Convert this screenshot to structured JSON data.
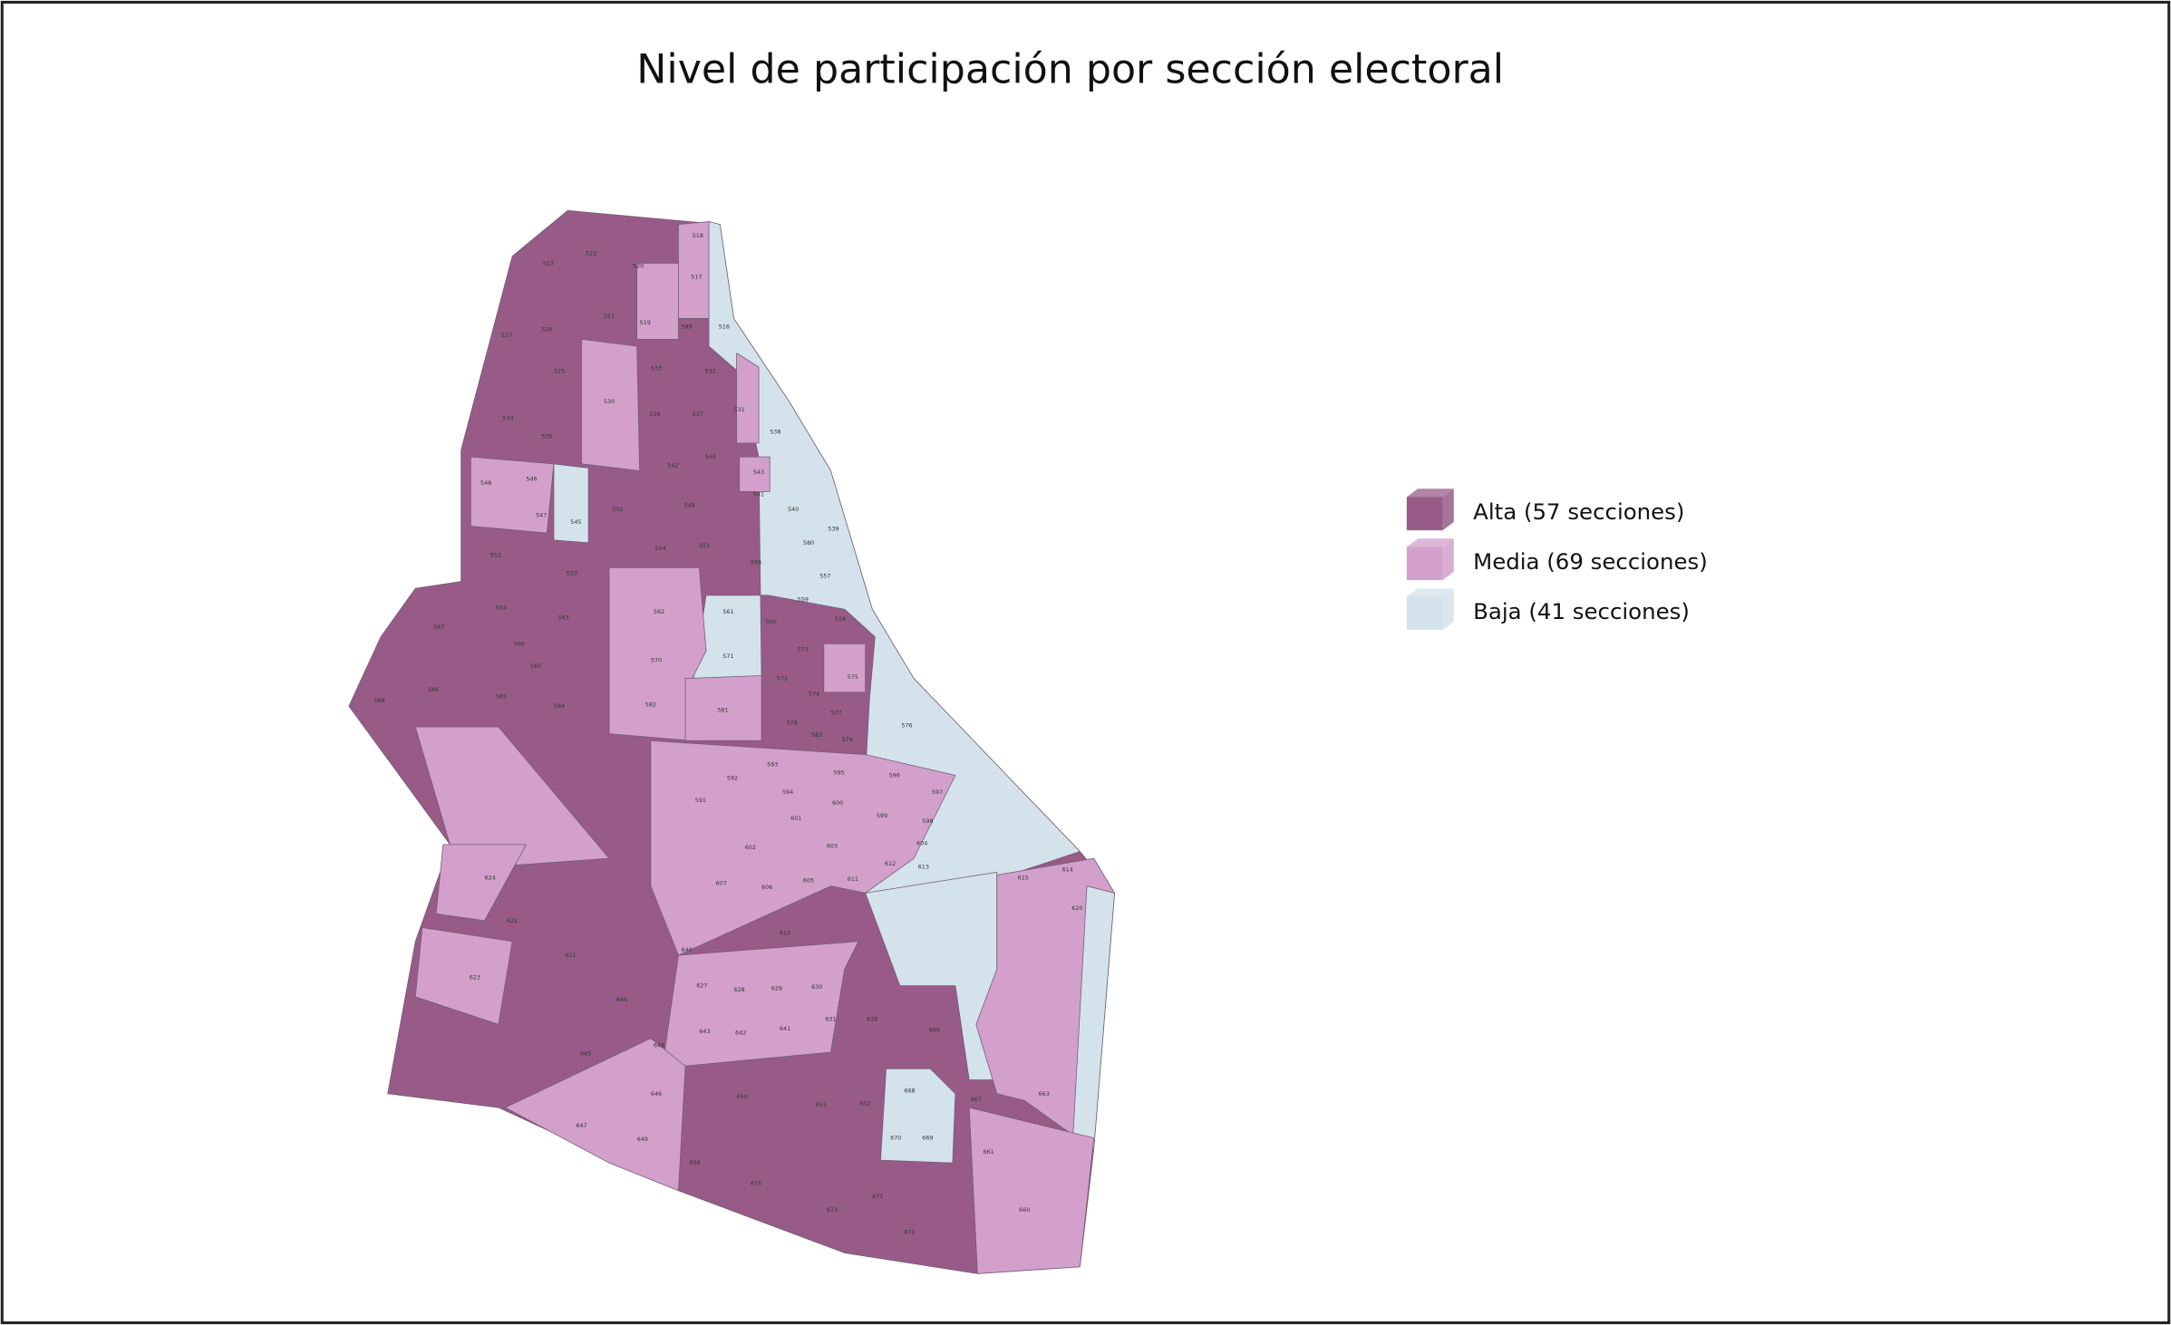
{
  "title": "Nivel de participación por sección electoral",
  "legend": [
    {
      "label": "Alta (57 secciones)",
      "color": "#985b87"
    },
    {
      "label": "Media (69 secciones)",
      "color": "#d3a0cb"
    },
    {
      "label": "Baja (41 secciones)",
      "color": "#d4e2eb"
    }
  ],
  "sections": [
    "522",
    "523",
    "520",
    "518",
    "517",
    "519",
    "521",
    "589",
    "516",
    "527",
    "526",
    "525",
    "533",
    "532",
    "530",
    "536",
    "537",
    "531",
    "534",
    "535",
    "538",
    "544",
    "542",
    "543",
    "541",
    "546",
    "548",
    "547",
    "545",
    "550",
    "549",
    "540",
    "539",
    "580",
    "551",
    "554",
    "552",
    "553",
    "556",
    "557",
    "562",
    "561",
    "560",
    "559",
    "558",
    "564",
    "563",
    "567",
    "566",
    "565",
    "571",
    "573",
    "570",
    "575",
    "572",
    "574",
    "586",
    "585",
    "584",
    "569",
    "582",
    "581",
    "578",
    "577",
    "576",
    "583",
    "579",
    "592",
    "593",
    "594",
    "595",
    "596",
    "597",
    "598",
    "599",
    "600",
    "601",
    "591",
    "602",
    "603",
    "604",
    "605",
    "606",
    "607",
    "610",
    "611",
    "612",
    "613",
    "614",
    "615",
    "620",
    "624",
    "622",
    "621",
    "623",
    "644",
    "645",
    "646",
    "647",
    "649",
    "650",
    "651",
    "652",
    "656",
    "675",
    "673",
    "671",
    "672",
    "660",
    "661",
    "668",
    "670",
    "669",
    "667",
    "640",
    "627",
    "628",
    "629",
    "630",
    "631",
    "641",
    "642",
    "643",
    "639",
    "648",
    "665",
    "663"
  ]
}
